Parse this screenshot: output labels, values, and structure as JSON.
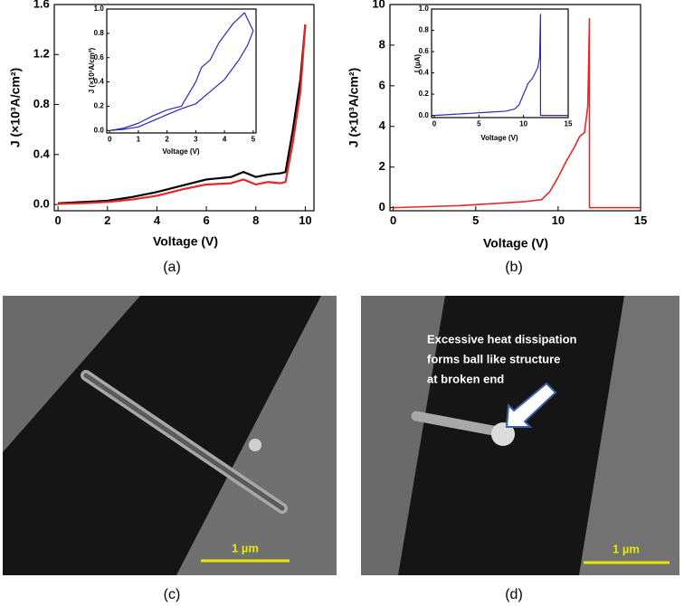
{
  "chart_data": [
    {
      "type": "line",
      "xlabel": "Voltage (V)",
      "ylabel": "J (×10³A/cm²)",
      "x": [
        0,
        1,
        2,
        3,
        4,
        5,
        6,
        7,
        7.5,
        8,
        8.5,
        9,
        9.2,
        9.5,
        9.8,
        10
      ],
      "series": [
        {
          "color": "#000000",
          "values": [
            0.01,
            0.02,
            0.03,
            0.06,
            0.1,
            0.15,
            0.2,
            0.22,
            0.26,
            0.22,
            0.24,
            0.25,
            0.26,
            0.6,
            1.0,
            1.44
          ]
        },
        {
          "color": "#e8262a",
          "values": [
            0.005,
            0.01,
            0.02,
            0.04,
            0.07,
            0.12,
            0.16,
            0.17,
            0.2,
            0.16,
            0.18,
            0.17,
            0.18,
            0.5,
            0.9,
            1.44
          ]
        }
      ],
      "xlim": [
        -0.15,
        10.35
      ],
      "ylim": [
        -0.05,
        1.6
      ],
      "xticks": [
        0,
        2,
        4,
        6,
        8,
        10
      ],
      "yticks": [
        {
          "value": 0,
          "label": "0.0"
        },
        0.4,
        0.8,
        1.2,
        1.6
      ]
    },
    {
      "type": "line",
      "xlabel": "Voltage (V)",
      "ylabel": "J (×10³A/cm²)",
      "x": [
        0,
        0.5,
        1,
        1.5,
        2,
        2.5,
        3,
        3.5,
        4,
        4.5,
        4.8,
        5,
        4.7,
        4.3,
        3.8,
        3.5,
        3.2,
        3,
        2.5,
        2,
        1.5,
        1,
        0.5,
        0
      ],
      "series": [
        {
          "color": "#2a2ab5",
          "values": [
            0,
            0.01,
            0.03,
            0.08,
            0.13,
            0.18,
            0.22,
            0.32,
            0.42,
            0.58,
            0.7,
            0.82,
            0.97,
            0.88,
            0.72,
            0.58,
            0.52,
            0.4,
            0.2,
            0.17,
            0.12,
            0.06,
            0.02,
            0
          ]
        }
      ],
      "xlim": [
        -0.1,
        5.1
      ],
      "ylim": [
        -0.02,
        1.0
      ],
      "xticks": [
        0,
        1,
        2,
        3,
        4,
        5
      ],
      "yticks": [
        {
          "value": 0,
          "label": "0.0"
        },
        0.2,
        0.4,
        0.6,
        0.8,
        {
          "value": 1,
          "label": "1.0"
        }
      ]
    },
    {
      "type": "line",
      "xlabel": "Voltage (V)",
      "ylabel": "J (×10³A/cm²)",
      "x": [
        0,
        2,
        4,
        6,
        8,
        9,
        9.5,
        10,
        10.5,
        11,
        11.3,
        11.6,
        11.8,
        11.9,
        11.9,
        12,
        15
      ],
      "series": [
        {
          "color": "#e8262a",
          "values": [
            0,
            0.05,
            0.1,
            0.2,
            0.3,
            0.4,
            0.8,
            1.5,
            2.3,
            3.0,
            3.5,
            3.7,
            5.0,
            9.3,
            0,
            0,
            0
          ]
        }
      ],
      "xlim": [
        -0.2,
        15
      ],
      "ylim": [
        -0.15,
        10
      ],
      "xticks": [
        0,
        5,
        10,
        15
      ],
      "yticks": [
        0,
        2,
        4,
        6,
        8,
        10
      ]
    },
    {
      "type": "line",
      "xlabel": "Voltage (V)",
      "ylabel": "I (µA)",
      "x": [
        0,
        2,
        4,
        6,
        8,
        9,
        9.5,
        10,
        10.5,
        11,
        11.3,
        11.6,
        11.8,
        11.9,
        11.9,
        12,
        15
      ],
      "series": [
        {
          "color": "#2a2ab5",
          "values": [
            0,
            0.01,
            0.02,
            0.03,
            0.04,
            0.06,
            0.1,
            0.2,
            0.3,
            0.35,
            0.4,
            0.45,
            0.55,
            0.95,
            0,
            0,
            0
          ]
        }
      ],
      "xlim": [
        -0.3,
        15
      ],
      "ylim": [
        -0.02,
        1.0
      ],
      "xticks": [
        0,
        5,
        10,
        15
      ],
      "yticks": [
        {
          "value": 0,
          "label": "0.0"
        },
        0.2,
        0.4,
        0.6,
        0.8,
        {
          "value": 1,
          "label": "1.0"
        }
      ]
    }
  ],
  "figure": {
    "panel_labels": [
      "(a)",
      "(b)",
      "(c)",
      "(d)"
    ],
    "scale_bars": [
      "1 µm",
      "1 µm"
    ],
    "annotation": [
      "Excessive heat dissipation",
      "forms ball like structure",
      "at broken end"
    ]
  }
}
